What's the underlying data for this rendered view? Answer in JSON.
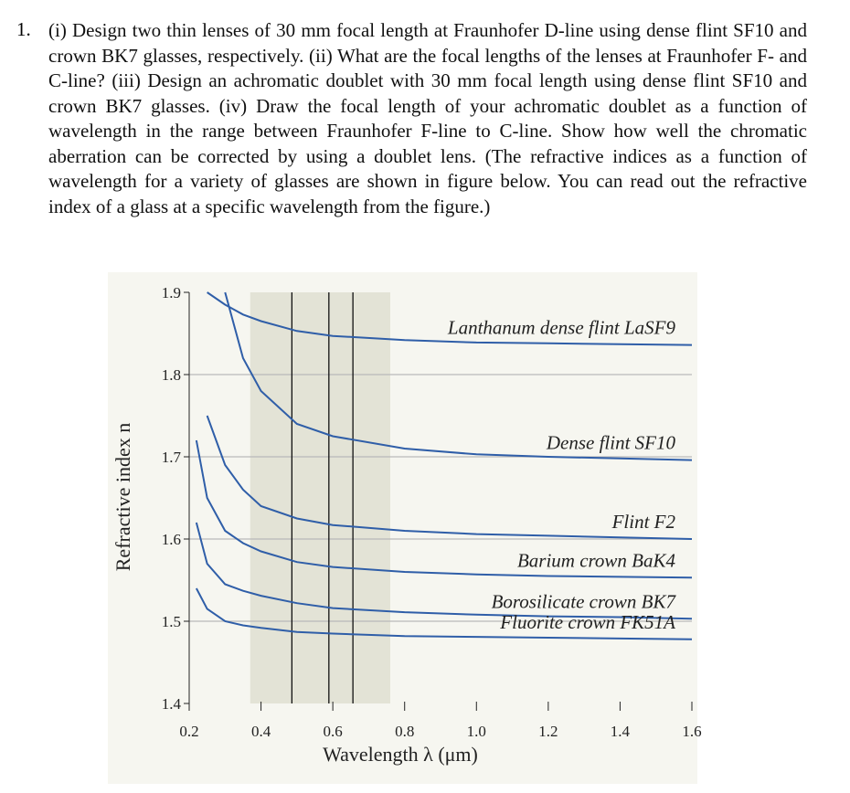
{
  "problem": {
    "number": "1.",
    "text": "(i) Design two thin lenses of 30 mm focal length at Fraunhofer D-line using dense flint SF10 and crown BK7 glasses, respectively. (ii) What are the focal lengths of the lenses at Fraunhofer F- and C-line? (iii) Design an achromatic doublet with 30 mm focal length using dense flint SF10 and crown BK7 glasses. (iv) Draw the focal length of your achromatic doublet as a function of wavelength in the range between Fraunhofer F-line to C-line. Show how well the chromatic aberration can be corrected by using a doublet lens. (The refractive indices as a function of wavelength for a variety of glasses are shown in figure below. You can read out the refractive index of a glass at a specific wavelength from the figure.)"
  },
  "chart_data": {
    "type": "line",
    "xlabel": "Wavelength λ (μm)",
    "ylabel": "Refractive index n",
    "x": [
      0.22,
      0.25,
      0.3,
      0.35,
      0.4,
      0.5,
      0.6,
      0.8,
      1.0,
      1.2,
      1.4,
      1.6
    ],
    "xlim": [
      0.2,
      1.6
    ],
    "ylim": [
      1.4,
      1.9
    ],
    "xticks": [
      0.2,
      0.4,
      0.6,
      {
        "value": 0.8,
        "label": "0.8"
      },
      {
        "value": 1.0,
        "label": "1.0"
      },
      1.2,
      1.4,
      1.6
    ],
    "yticks": [
      1.4,
      1.5,
      1.6,
      1.7,
      1.8,
      1.9
    ],
    "grid": true,
    "visible_band": [
      0.37,
      0.76
    ],
    "band_color": "#e3e3d6",
    "fraunhofer_lines": [
      0.486,
      0.589,
      0.656
    ],
    "series": [
      {
        "name": "Lanthanum dense flint LaSF9",
        "color": "#2f5ea8",
        "values": [
          null,
          1.9,
          1.885,
          1.873,
          1.865,
          1.853,
          1.847,
          1.842,
          1.839,
          1.838,
          1.837,
          1.836
        ]
      },
      {
        "name": "Dense flint SF10",
        "color": "#2f5ea8",
        "values": [
          null,
          null,
          1.9,
          1.82,
          1.78,
          1.74,
          1.725,
          1.71,
          1.703,
          1.7,
          1.698,
          1.696
        ]
      },
      {
        "name": "Flint F2",
        "color": "#2f5ea8",
        "values": [
          null,
          1.75,
          1.69,
          1.66,
          1.64,
          1.625,
          1.617,
          1.61,
          1.606,
          1.604,
          1.602,
          1.6
        ]
      },
      {
        "name": "Barium crown BaK4",
        "color": "#2f5ea8",
        "values": [
          1.72,
          1.65,
          1.61,
          1.595,
          1.585,
          1.572,
          1.566,
          1.56,
          1.557,
          1.555,
          1.554,
          1.553
        ]
      },
      {
        "name": "Borosilicate crown BK7",
        "color": "#2f5ea8",
        "values": [
          1.62,
          1.57,
          1.545,
          1.537,
          1.531,
          1.522,
          1.516,
          1.511,
          1.508,
          1.506,
          1.505,
          1.503
        ]
      },
      {
        "name": "Fluorite crown FK51A",
        "color": "#2f5ea8",
        "values": [
          1.54,
          1.515,
          1.5,
          1.495,
          1.492,
          1.487,
          1.485,
          1.482,
          1.481,
          1.48,
          1.479,
          1.478
        ]
      }
    ]
  }
}
